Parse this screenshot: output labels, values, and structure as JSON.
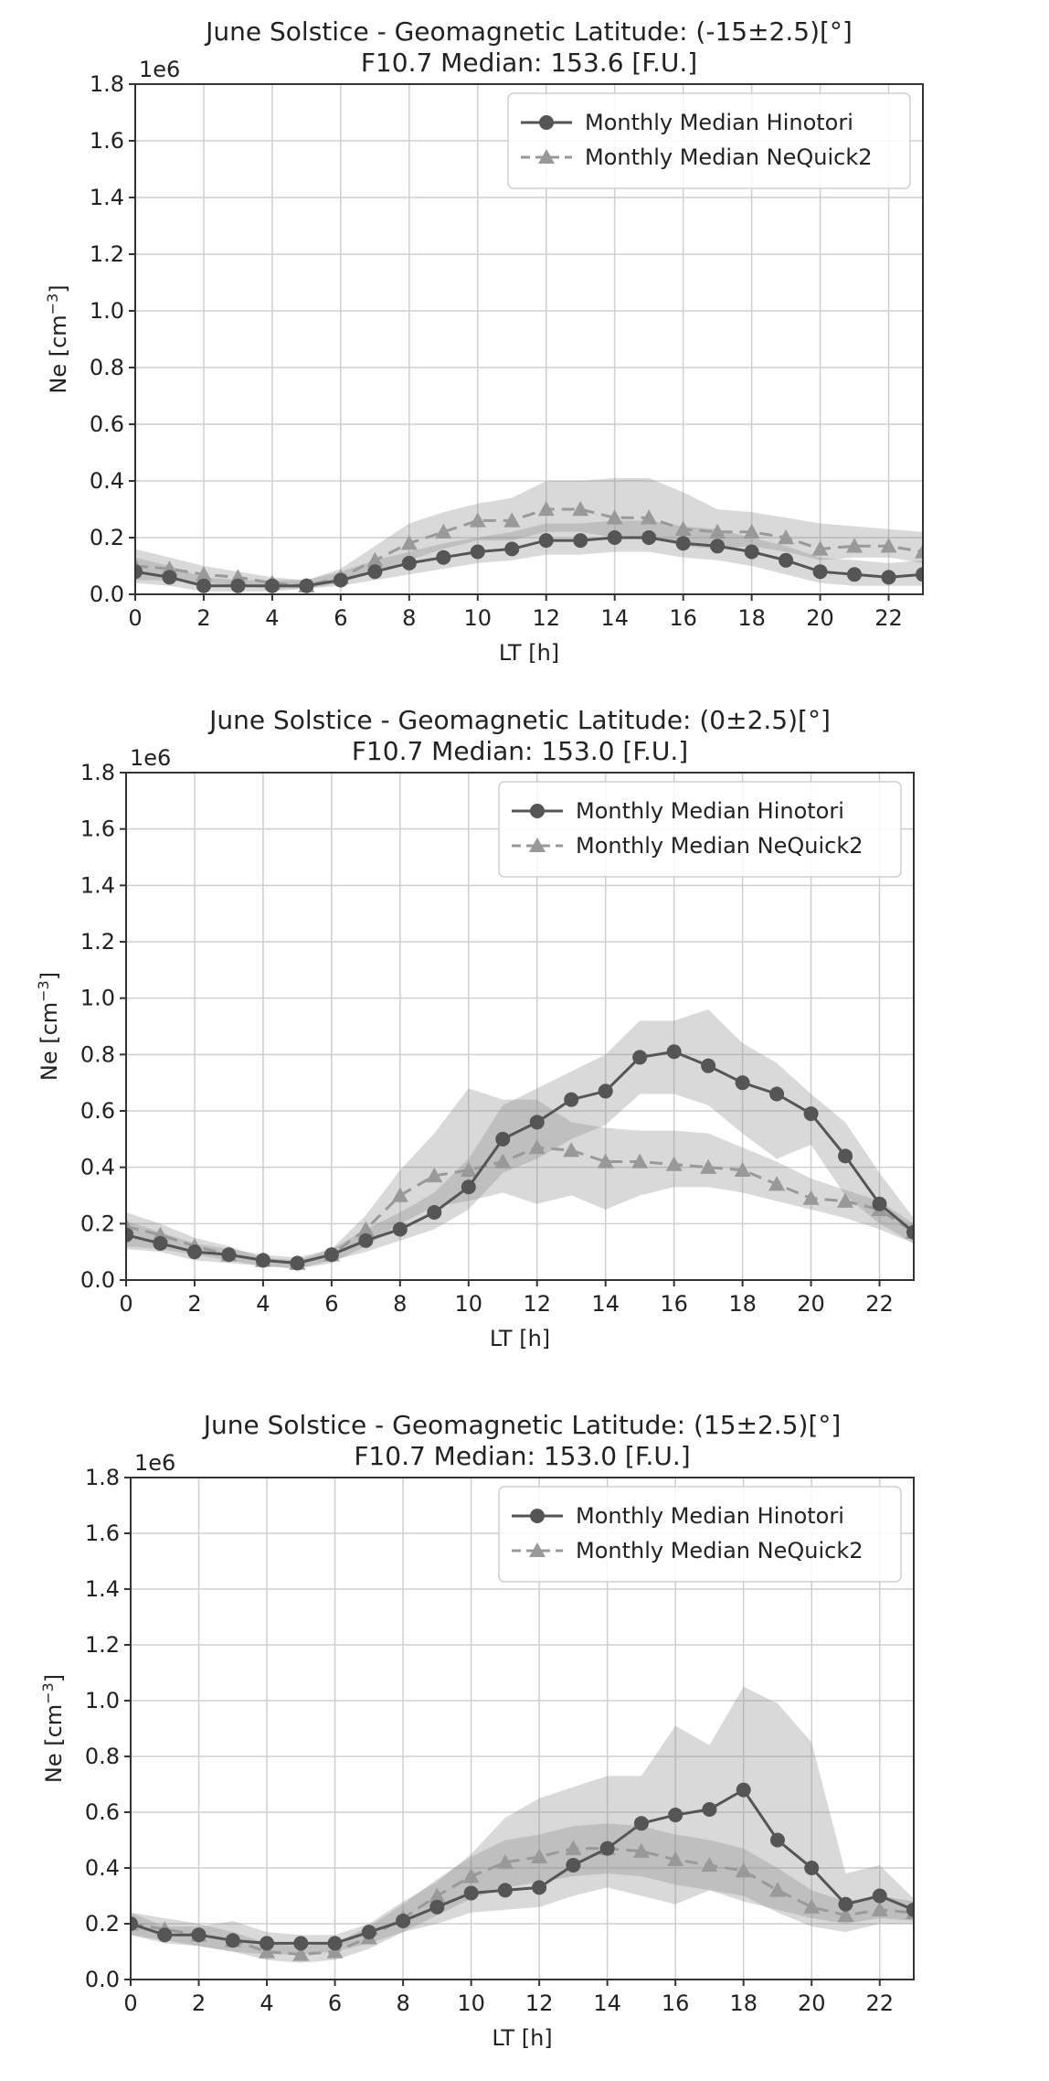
{
  "chart_data": [
    {
      "type": "line",
      "title": "June Solstice - Geomagnetic Latitude: (-15±2.5)[°]",
      "subtitle": "F10.7 Median: 153.6 [F.U.]",
      "xlabel": "LT [h]",
      "ylabel_main": "Ne [cm",
      "ylabel_exp": "−3",
      "ylabel_close": "]",
      "offset_label": "1e6",
      "xlim": [
        0,
        23
      ],
      "ylim": [
        0,
        1.8
      ],
      "xticks": [
        0,
        2,
        4,
        6,
        8,
        10,
        12,
        14,
        16,
        18,
        20,
        22
      ],
      "yticks": [
        0.0,
        0.2,
        0.4,
        0.6,
        0.8,
        1.0,
        1.2,
        1.4,
        1.6,
        1.8
      ],
      "ytick_labels": [
        "0.0",
        "0.2",
        "0.4",
        "0.6",
        "0.8",
        "1.0",
        "1.2",
        "1.4",
        "1.6",
        "1.8"
      ],
      "xtick_labels": [
        "0",
        "2",
        "4",
        "6",
        "8",
        "10",
        "12",
        "14",
        "16",
        "18",
        "20",
        "22"
      ],
      "grid": true,
      "legend_position": "top-right",
      "x": [
        0,
        1,
        2,
        3,
        4,
        5,
        6,
        7,
        8,
        9,
        10,
        11,
        12,
        13,
        14,
        15,
        16,
        17,
        18,
        19,
        20,
        21,
        22,
        23
      ],
      "series": [
        {
          "name": "Monthly Median Hinotori",
          "marker": "circle",
          "linestyle": "solid",
          "color": "#555555",
          "values": [
            0.08,
            0.06,
            0.03,
            0.03,
            0.03,
            0.03,
            0.05,
            0.08,
            0.11,
            0.13,
            0.15,
            0.16,
            0.19,
            0.19,
            0.2,
            0.2,
            0.18,
            0.17,
            0.15,
            0.12,
            0.08,
            0.07,
            0.06,
            0.07
          ],
          "band_lower": [
            0.04,
            0.03,
            0.01,
            0.01,
            0.01,
            0.02,
            0.03,
            0.05,
            0.07,
            0.09,
            0.11,
            0.12,
            0.14,
            0.14,
            0.15,
            0.15,
            0.13,
            0.12,
            0.1,
            0.07,
            0.04,
            0.03,
            0.03,
            0.03
          ],
          "band_upper": [
            0.13,
            0.1,
            0.06,
            0.05,
            0.05,
            0.05,
            0.08,
            0.12,
            0.15,
            0.18,
            0.2,
            0.22,
            0.25,
            0.25,
            0.26,
            0.26,
            0.24,
            0.23,
            0.2,
            0.17,
            0.13,
            0.12,
            0.11,
            0.12
          ]
        },
        {
          "name": "Monthly Median NeQuick2",
          "marker": "triangle",
          "linestyle": "dashed",
          "color": "#999999",
          "values": [
            0.1,
            0.09,
            0.07,
            0.06,
            0.04,
            0.03,
            0.06,
            0.12,
            0.18,
            0.22,
            0.26,
            0.26,
            0.3,
            0.3,
            0.27,
            0.27,
            0.23,
            0.22,
            0.22,
            0.2,
            0.16,
            0.17,
            0.17,
            0.15
          ],
          "band_lower": [
            0.05,
            0.05,
            0.04,
            0.03,
            0.02,
            0.02,
            0.04,
            0.08,
            0.12,
            0.16,
            0.19,
            0.19,
            0.22,
            0.22,
            0.2,
            0.2,
            0.17,
            0.16,
            0.17,
            0.15,
            0.12,
            0.13,
            0.13,
            0.11
          ],
          "band_upper": [
            0.16,
            0.13,
            0.1,
            0.08,
            0.06,
            0.05,
            0.09,
            0.17,
            0.25,
            0.29,
            0.32,
            0.34,
            0.4,
            0.4,
            0.41,
            0.41,
            0.36,
            0.3,
            0.29,
            0.27,
            0.25,
            0.24,
            0.23,
            0.22
          ]
        }
      ]
    },
    {
      "type": "line",
      "title": "June Solstice - Geomagnetic Latitude: (0±2.5)[°]",
      "subtitle": "F10.7 Median: 153.0 [F.U.]",
      "xlabel": "LT [h]",
      "ylabel_main": "Ne [cm",
      "ylabel_exp": "−3",
      "ylabel_close": "]",
      "offset_label": "1e6",
      "xlim": [
        0,
        23
      ],
      "ylim": [
        0,
        1.8
      ],
      "xticks": [
        0,
        2,
        4,
        6,
        8,
        10,
        12,
        14,
        16,
        18,
        20,
        22
      ],
      "yticks": [
        0.0,
        0.2,
        0.4,
        0.6,
        0.8,
        1.0,
        1.2,
        1.4,
        1.6,
        1.8
      ],
      "ytick_labels": [
        "0.0",
        "0.2",
        "0.4",
        "0.6",
        "0.8",
        "1.0",
        "1.2",
        "1.4",
        "1.6",
        "1.8"
      ],
      "xtick_labels": [
        "0",
        "2",
        "4",
        "6",
        "8",
        "10",
        "12",
        "14",
        "16",
        "18",
        "20",
        "22"
      ],
      "grid": true,
      "legend_position": "top-right",
      "x": [
        0,
        1,
        2,
        3,
        4,
        5,
        6,
        7,
        8,
        9,
        10,
        11,
        12,
        13,
        14,
        15,
        16,
        17,
        18,
        19,
        20,
        21,
        22,
        23
      ],
      "series": [
        {
          "name": "Monthly Median Hinotori",
          "marker": "circle",
          "linestyle": "solid",
          "color": "#555555",
          "values": [
            0.16,
            0.13,
            0.1,
            0.09,
            0.07,
            0.06,
            0.09,
            0.14,
            0.18,
            0.24,
            0.33,
            0.5,
            0.56,
            0.64,
            0.67,
            0.79,
            0.81,
            0.76,
            0.7,
            0.66,
            0.59,
            0.44,
            0.27,
            0.17
          ],
          "band_lower": [
            0.11,
            0.1,
            0.07,
            0.06,
            0.05,
            0.04,
            0.07,
            0.1,
            0.14,
            0.18,
            0.25,
            0.38,
            0.43,
            0.5,
            0.55,
            0.66,
            0.66,
            0.62,
            0.52,
            0.43,
            0.48,
            0.3,
            0.2,
            0.13
          ],
          "band_upper": [
            0.21,
            0.17,
            0.13,
            0.11,
            0.09,
            0.08,
            0.11,
            0.18,
            0.24,
            0.31,
            0.43,
            0.62,
            0.68,
            0.74,
            0.8,
            0.92,
            0.92,
            0.96,
            0.84,
            0.77,
            0.66,
            0.56,
            0.38,
            0.22
          ]
        },
        {
          "name": "Monthly Median NeQuick2",
          "marker": "triangle",
          "linestyle": "dashed",
          "color": "#999999",
          "values": [
            0.19,
            0.16,
            0.12,
            0.09,
            0.07,
            0.06,
            0.09,
            0.18,
            0.3,
            0.37,
            0.39,
            0.42,
            0.47,
            0.46,
            0.42,
            0.42,
            0.41,
            0.4,
            0.39,
            0.34,
            0.29,
            0.28,
            0.25,
            0.17
          ],
          "band_lower": [
            0.12,
            0.11,
            0.09,
            0.07,
            0.05,
            0.04,
            0.06,
            0.12,
            0.2,
            0.26,
            0.28,
            0.31,
            0.27,
            0.3,
            0.25,
            0.3,
            0.33,
            0.33,
            0.31,
            0.28,
            0.25,
            0.22,
            0.18,
            0.13
          ],
          "band_upper": [
            0.24,
            0.2,
            0.15,
            0.12,
            0.08,
            0.07,
            0.11,
            0.23,
            0.39,
            0.52,
            0.68,
            0.64,
            0.64,
            0.56,
            0.54,
            0.53,
            0.53,
            0.52,
            0.47,
            0.42,
            0.36,
            0.32,
            0.28,
            0.2
          ]
        }
      ]
    },
    {
      "type": "line",
      "title": "June Solstice - Geomagnetic Latitude: (15±2.5)[°]",
      "subtitle": "F10.7 Median: 153.0 [F.U.]",
      "xlabel": "LT [h]",
      "ylabel_main": "Ne [cm",
      "ylabel_exp": "−3",
      "ylabel_close": "]",
      "offset_label": "1e6",
      "xlim": [
        0,
        23
      ],
      "ylim": [
        0,
        1.8
      ],
      "xticks": [
        0,
        2,
        4,
        6,
        8,
        10,
        12,
        14,
        16,
        18,
        20,
        22
      ],
      "yticks": [
        0.0,
        0.2,
        0.4,
        0.6,
        0.8,
        1.0,
        1.2,
        1.4,
        1.6,
        1.8
      ],
      "ytick_labels": [
        "0.0",
        "0.2",
        "0.4",
        "0.6",
        "0.8",
        "1.0",
        "1.2",
        "1.4",
        "1.6",
        "1.8"
      ],
      "xtick_labels": [
        "0",
        "2",
        "4",
        "6",
        "8",
        "10",
        "12",
        "14",
        "16",
        "18",
        "20",
        "22"
      ],
      "grid": true,
      "legend_position": "top-right",
      "x": [
        0,
        1,
        2,
        3,
        4,
        5,
        6,
        7,
        8,
        9,
        10,
        11,
        12,
        13,
        14,
        15,
        16,
        17,
        18,
        19,
        20,
        21,
        22,
        23
      ],
      "series": [
        {
          "name": "Monthly Median Hinotori",
          "marker": "circle",
          "linestyle": "solid",
          "color": "#555555",
          "values": [
            0.2,
            0.16,
            0.16,
            0.14,
            0.13,
            0.13,
            0.13,
            0.17,
            0.21,
            0.26,
            0.31,
            0.32,
            0.33,
            0.41,
            0.47,
            0.56,
            0.59,
            0.61,
            0.68,
            0.5,
            0.4,
            0.27,
            0.3,
            0.25
          ],
          "band_lower": [
            0.16,
            0.13,
            0.12,
            0.1,
            0.09,
            0.09,
            0.1,
            0.13,
            0.17,
            0.2,
            0.24,
            0.25,
            0.26,
            0.3,
            0.33,
            0.3,
            0.27,
            0.32,
            0.28,
            0.25,
            0.22,
            0.2,
            0.22,
            0.21
          ],
          "band_upper": [
            0.24,
            0.19,
            0.19,
            0.21,
            0.17,
            0.16,
            0.16,
            0.2,
            0.28,
            0.35,
            0.45,
            0.58,
            0.65,
            0.69,
            0.73,
            0.73,
            0.91,
            0.84,
            1.05,
            0.99,
            0.85,
            0.38,
            0.41,
            0.29
          ]
        },
        {
          "name": "Monthly Median NeQuick2",
          "marker": "triangle",
          "linestyle": "dashed",
          "color": "#999999",
          "values": [
            0.2,
            0.18,
            0.16,
            0.14,
            0.1,
            0.09,
            0.1,
            0.15,
            0.22,
            0.3,
            0.37,
            0.42,
            0.44,
            0.47,
            0.47,
            0.46,
            0.43,
            0.41,
            0.39,
            0.32,
            0.26,
            0.23,
            0.25,
            0.24
          ],
          "band_lower": [
            0.16,
            0.14,
            0.12,
            0.1,
            0.07,
            0.06,
            0.07,
            0.11,
            0.17,
            0.23,
            0.29,
            0.33,
            0.35,
            0.37,
            0.38,
            0.37,
            0.34,
            0.32,
            0.3,
            0.24,
            0.19,
            0.17,
            0.2,
            0.2
          ],
          "band_upper": [
            0.24,
            0.22,
            0.2,
            0.17,
            0.13,
            0.12,
            0.13,
            0.19,
            0.27,
            0.36,
            0.44,
            0.5,
            0.52,
            0.55,
            0.56,
            0.55,
            0.52,
            0.5,
            0.47,
            0.4,
            0.32,
            0.28,
            0.3,
            0.28
          ]
        }
      ]
    }
  ]
}
